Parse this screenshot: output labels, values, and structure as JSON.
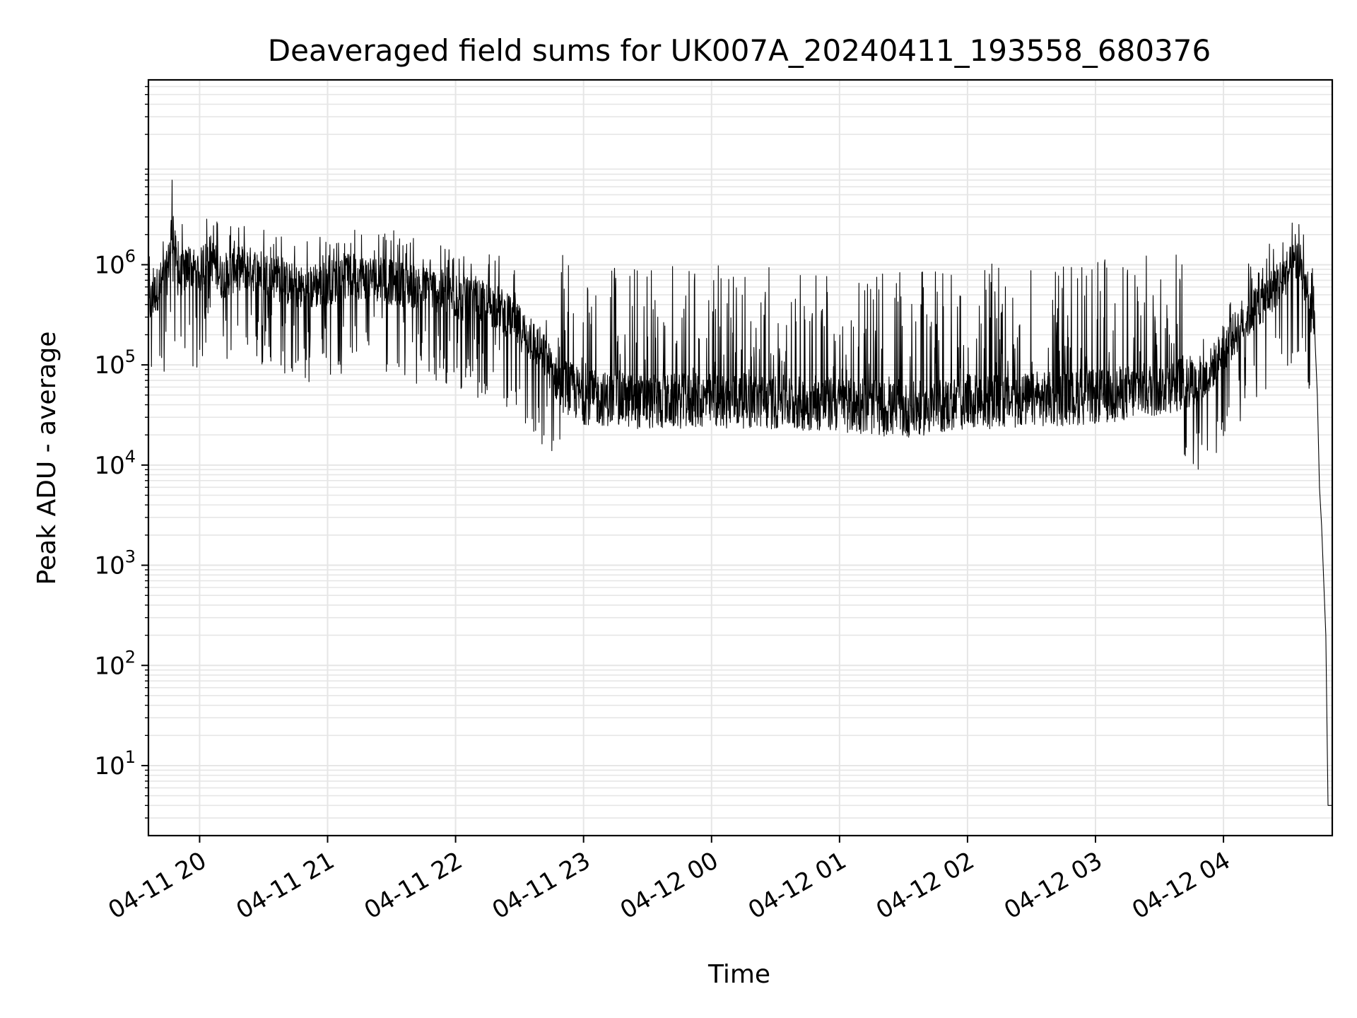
{
  "chart_data": {
    "type": "line",
    "title": "Deaveraged field sums for UK007A_20240411_193558_680376",
    "xlabel": "Time",
    "ylabel": "Peak ADU - average",
    "yscale": "log",
    "ylim": [
      2,
      70000000
    ],
    "xlim": [
      "2024-04-11T19:36:00",
      "2024-04-12T04:51:00"
    ],
    "grid": true,
    "line_color": "#000000",
    "grid_color": "#e6e6e6",
    "x_ticks": [
      {
        "t": "2024-04-11T20:00:00",
        "label": "04-11 20"
      },
      {
        "t": "2024-04-11T21:00:00",
        "label": "04-11 21"
      },
      {
        "t": "2024-04-11T22:00:00",
        "label": "04-11 22"
      },
      {
        "t": "2024-04-11T23:00:00",
        "label": "04-11 23"
      },
      {
        "t": "2024-04-12T00:00:00",
        "label": "04-12 00"
      },
      {
        "t": "2024-04-12T01:00:00",
        "label": "04-12 01"
      },
      {
        "t": "2024-04-12T02:00:00",
        "label": "04-12 02"
      },
      {
        "t": "2024-04-12T03:00:00",
        "label": "04-12 03"
      },
      {
        "t": "2024-04-12T04:00:00",
        "label": "04-12 04"
      }
    ],
    "y_ticks": [
      {
        "value": 10,
        "base": "10",
        "exp": "1"
      },
      {
        "value": 100,
        "base": "10",
        "exp": "2"
      },
      {
        "value": 1000,
        "base": "10",
        "exp": "3"
      },
      {
        "value": 10000,
        "base": "10",
        "exp": "4"
      },
      {
        "value": 100000,
        "base": "10",
        "exp": "5"
      },
      {
        "value": 1000000,
        "base": "10",
        "exp": "6"
      }
    ],
    "series": [
      {
        "points": [
          [
            "2024-04-11T19:36:00",
            400000
          ],
          [
            "2024-04-11T19:40:00",
            600000
          ],
          [
            "2024-04-11T19:45:00",
            900000
          ],
          [
            "2024-04-11T19:47:00",
            2500000
          ],
          [
            "2024-04-11T19:50:00",
            800000
          ],
          [
            "2024-04-11T19:55:00",
            1000000
          ],
          [
            "2024-04-11T20:00:00",
            900000
          ],
          [
            "2024-04-11T20:05:00",
            1300000
          ],
          [
            "2024-04-11T20:10:00",
            800000
          ],
          [
            "2024-04-11T20:20:00",
            1000000
          ],
          [
            "2024-04-11T20:30:00",
            900000
          ],
          [
            "2024-04-11T20:40:00",
            700000
          ],
          [
            "2024-04-11T20:50:00",
            600000
          ],
          [
            "2024-04-11T21:00:00",
            700000
          ],
          [
            "2024-04-11T21:10:00",
            800000
          ],
          [
            "2024-04-11T21:20:00",
            800000
          ],
          [
            "2024-04-11T21:30:00",
            700000
          ],
          [
            "2024-04-11T21:40:00",
            650000
          ],
          [
            "2024-04-11T21:50:00",
            600000
          ],
          [
            "2024-04-11T22:00:00",
            500000
          ],
          [
            "2024-04-11T22:10:00",
            450000
          ],
          [
            "2024-04-11T22:20:00",
            400000
          ],
          [
            "2024-04-11T22:30:00",
            250000
          ],
          [
            "2024-04-11T22:40:00",
            150000
          ],
          [
            "2024-04-11T22:50:00",
            60000
          ],
          [
            "2024-04-11T23:00:00",
            45000
          ],
          [
            "2024-04-11T23:30:00",
            40000
          ],
          [
            "2024-04-12T00:00:00",
            42000
          ],
          [
            "2024-04-12T00:30:00",
            40000
          ],
          [
            "2024-04-12T01:00:00",
            38000
          ],
          [
            "2024-04-12T01:30:00",
            33000
          ],
          [
            "2024-04-12T02:00:00",
            40000
          ],
          [
            "2024-04-12T02:30:00",
            42000
          ],
          [
            "2024-04-12T03:00:00",
            45000
          ],
          [
            "2024-04-12T03:30:00",
            55000
          ],
          [
            "2024-04-12T03:50:00",
            70000
          ],
          [
            "2024-04-12T04:00:00",
            150000
          ],
          [
            "2024-04-12T04:10:00",
            300000
          ],
          [
            "2024-04-12T04:20:00",
            500000
          ],
          [
            "2024-04-12T04:30:00",
            900000
          ],
          [
            "2024-04-12T04:35:00",
            1200000
          ],
          [
            "2024-04-12T04:40:00",
            500000
          ],
          [
            "2024-04-12T04:43:00",
            200000
          ],
          [
            "2024-04-12T04:44:00",
            50000
          ],
          [
            "2024-04-12T04:45:00",
            6000
          ],
          [
            "2024-04-12T04:46:00",
            2500
          ],
          [
            "2024-04-12T04:47:00",
            700
          ],
          [
            "2024-04-12T04:48:00",
            200
          ],
          [
            "2024-04-12T04:49:00",
            4
          ],
          [
            "2024-04-12T04:51:00",
            4
          ]
        ]
      }
    ]
  }
}
